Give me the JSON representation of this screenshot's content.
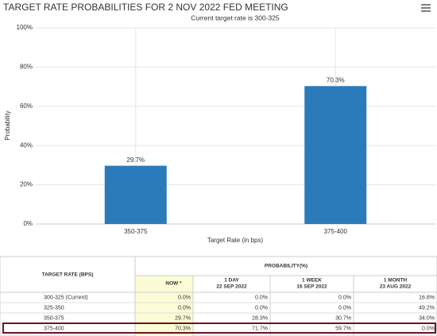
{
  "chart_data": {
    "type": "bar",
    "title": "TARGET RATE PROBABILITIES FOR 2 NOV 2022 FED MEETING",
    "subtitle": "Current target rate is 300-325",
    "categories": [
      "350-375",
      "375-400"
    ],
    "values": [
      29.7,
      70.3
    ],
    "value_labels": [
      "29.7%",
      "70.3%"
    ],
    "color": "#2b7bba",
    "xlabel": "Target Rate (in bps)",
    "ylabel": "Probability",
    "ylim": [
      0,
      100
    ],
    "yticks": [
      {
        "value": 0,
        "label": "0%"
      },
      {
        "value": 20,
        "label": "20%"
      },
      {
        "value": 40,
        "label": "40%"
      },
      {
        "value": 60,
        "label": "60%"
      },
      {
        "value": 80,
        "label": "80%"
      },
      {
        "value": 100,
        "label": "100%"
      }
    ],
    "grid": true
  },
  "table": {
    "header": "TARGET RATE (BPS)",
    "group": "PROBABILITY(%)",
    "columns": [
      {
        "title": "NOW *"
      },
      {
        "title": "1 DAY",
        "date": "22 SEP 2022"
      },
      {
        "title": "1 WEEK",
        "date": "16 SEP 2022"
      },
      {
        "title": "1 MONTH",
        "date": "23 AUG 2022"
      }
    ],
    "rows": [
      [
        "300-325 (Current)",
        "0.0%",
        "0.0%",
        "0.0%",
        "16.8%"
      ],
      [
        "325-350",
        "0.0%",
        "0.0%",
        "0.0%",
        "49.2%"
      ],
      [
        "350-375",
        "29.7%",
        "28.3%",
        "30.7%",
        "34.0%"
      ],
      [
        "375-400",
        "70.3%",
        "71.7%",
        "59.7%",
        "0.0%"
      ]
    ]
  }
}
